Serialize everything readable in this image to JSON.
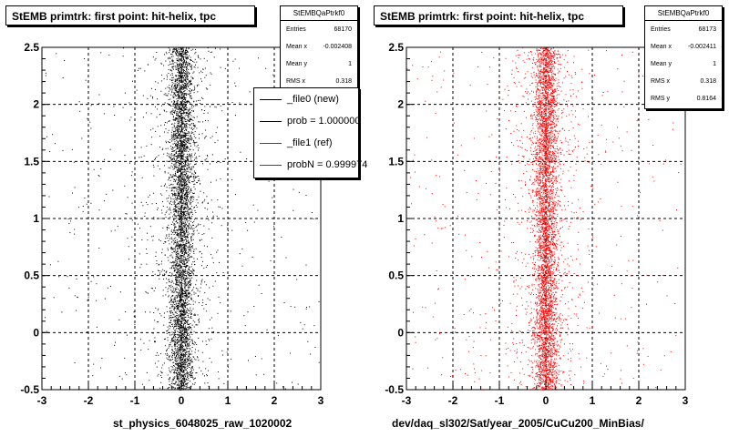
{
  "footer_text": "",
  "chart_data": [
    {
      "type": "scatter",
      "title": "StEMB primtrk: first point: hit-helix, tpc",
      "xlabel": "st_physics_6048025_raw_1020002",
      "ylabel": "",
      "xlim": [
        -3,
        3
      ],
      "ylim": [
        -0.5,
        2.5
      ],
      "xticks": [
        "-3",
        "-2",
        "-1",
        "0",
        "1",
        "2",
        "3"
      ],
      "yticks": [
        "-0.5",
        "0",
        "0.5",
        "1",
        "1.5",
        "2",
        "2.5"
      ],
      "grid": true,
      "marker_color": "#000000",
      "distribution": {
        "x_center": 0.0,
        "x_core_width": 0.13,
        "y_range": [
          -0.5,
          2.5
        ]
      },
      "stats": {
        "title": "StEMBQaPtrkf0",
        "rows": [
          {
            "label": "Entries",
            "value": "68170"
          },
          {
            "label": "Mean x",
            "value": "-0.002408"
          },
          {
            "label": "Mean y",
            "value": "1"
          },
          {
            "label": "RMS x",
            "value": "0.318"
          }
        ]
      },
      "legend": {
        "position": "top-right",
        "entries": [
          {
            "label": "_file0 (new)",
            "color": "#000000"
          },
          {
            "label": "prob = 1.000000",
            "color": "#000000"
          },
          {
            "label": "_file1 (ref)",
            "color": "#ff0000"
          },
          {
            "label": "probN = 0.999974",
            "color": "#ff0000"
          }
        ]
      }
    },
    {
      "type": "scatter",
      "title": "StEMB primtrk: first point: hit-helix, tpc",
      "xlabel": "dev/daq_sl302/Sat/year_2005/CuCu200_MinBias/",
      "ylabel": "",
      "xlim": [
        -3,
        3
      ],
      "ylim": [
        -0.5,
        2.5
      ],
      "xticks": [
        "-3",
        "-2",
        "-1",
        "0",
        "1",
        "2",
        "3"
      ],
      "yticks": [
        "-0.5",
        "0",
        "0.5",
        "1",
        "1.5",
        "2",
        "2.5"
      ],
      "grid": true,
      "marker_color": "#ff0000",
      "distribution": {
        "x_center": 0.0,
        "x_core_width": 0.13,
        "y_range": [
          -0.5,
          2.5
        ]
      },
      "stats": {
        "title": "StEMBQaPtrkf0",
        "rows": [
          {
            "label": "Entries",
            "value": "68173"
          },
          {
            "label": "Mean x",
            "value": "-0.002411"
          },
          {
            "label": "Mean y",
            "value": "1"
          },
          {
            "label": "RMS x",
            "value": "0.318"
          },
          {
            "label": "RMS y",
            "value": "0.8164"
          }
        ]
      }
    }
  ]
}
